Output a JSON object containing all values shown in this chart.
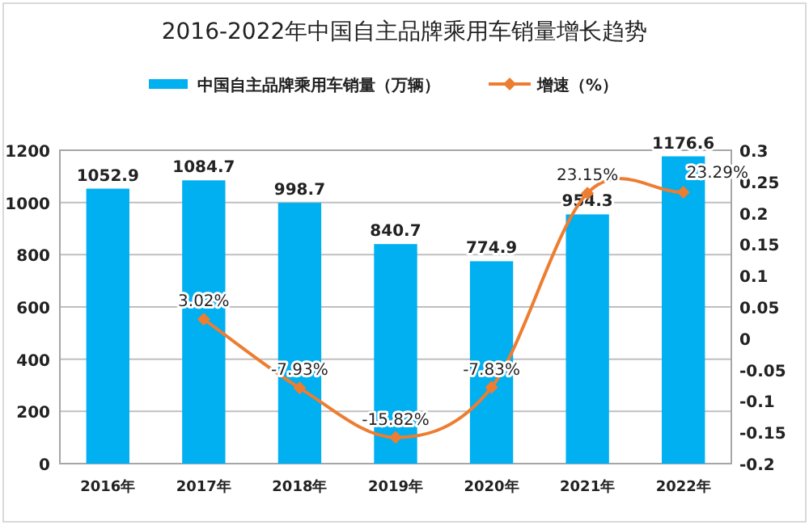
{
  "chart_data": {
    "type": "bar",
    "title": "2016-2022年中国自主品牌乘用车销量增长趋势",
    "categories": [
      "2016年",
      "2017年",
      "2018年",
      "2019年",
      "2020年",
      "2021年",
      "2022年"
    ],
    "series": [
      {
        "name": "中国自主品牌乘用车销量（万辆）",
        "color": "#00b0f0",
        "values": [
          1052.9,
          1084.7,
          998.7,
          840.7,
          774.9,
          954.3,
          1176.6
        ],
        "value_labels": [
          "1052.9",
          "1084.7",
          "998.7",
          "840.7",
          "774.9",
          "954.3",
          "1176.6"
        ]
      },
      {
        "name": "增速（%）",
        "type": "line",
        "axis": "y2",
        "color": "#ed7d31",
        "marker": "diamond",
        "values": [
          null,
          0.0302,
          -0.0793,
          -0.1582,
          -0.0783,
          0.2315,
          0.2329
        ],
        "value_labels": [
          null,
          "3.02%",
          "-7.93%",
          "-15.82%",
          "-7.83%",
          "23.15%",
          "23.29%"
        ]
      }
    ],
    "ylim": [
      0,
      1200
    ],
    "yticks": [
      0,
      200,
      400,
      600,
      800,
      1000,
      1200
    ],
    "y2lim": [
      -0.2,
      0.3
    ],
    "y2ticks": [
      {
        "value": -0.2,
        "label": "-0.2"
      },
      {
        "value": -0.15,
        "label": "-0.15"
      },
      {
        "value": -0.1,
        "label": "-0.1"
      },
      {
        "value": -0.05,
        "label": "-0.05"
      },
      0,
      0.05,
      0.1,
      0.15,
      0.2,
      0.25,
      0.3
    ],
    "grid": "y",
    "legend": "top"
  }
}
